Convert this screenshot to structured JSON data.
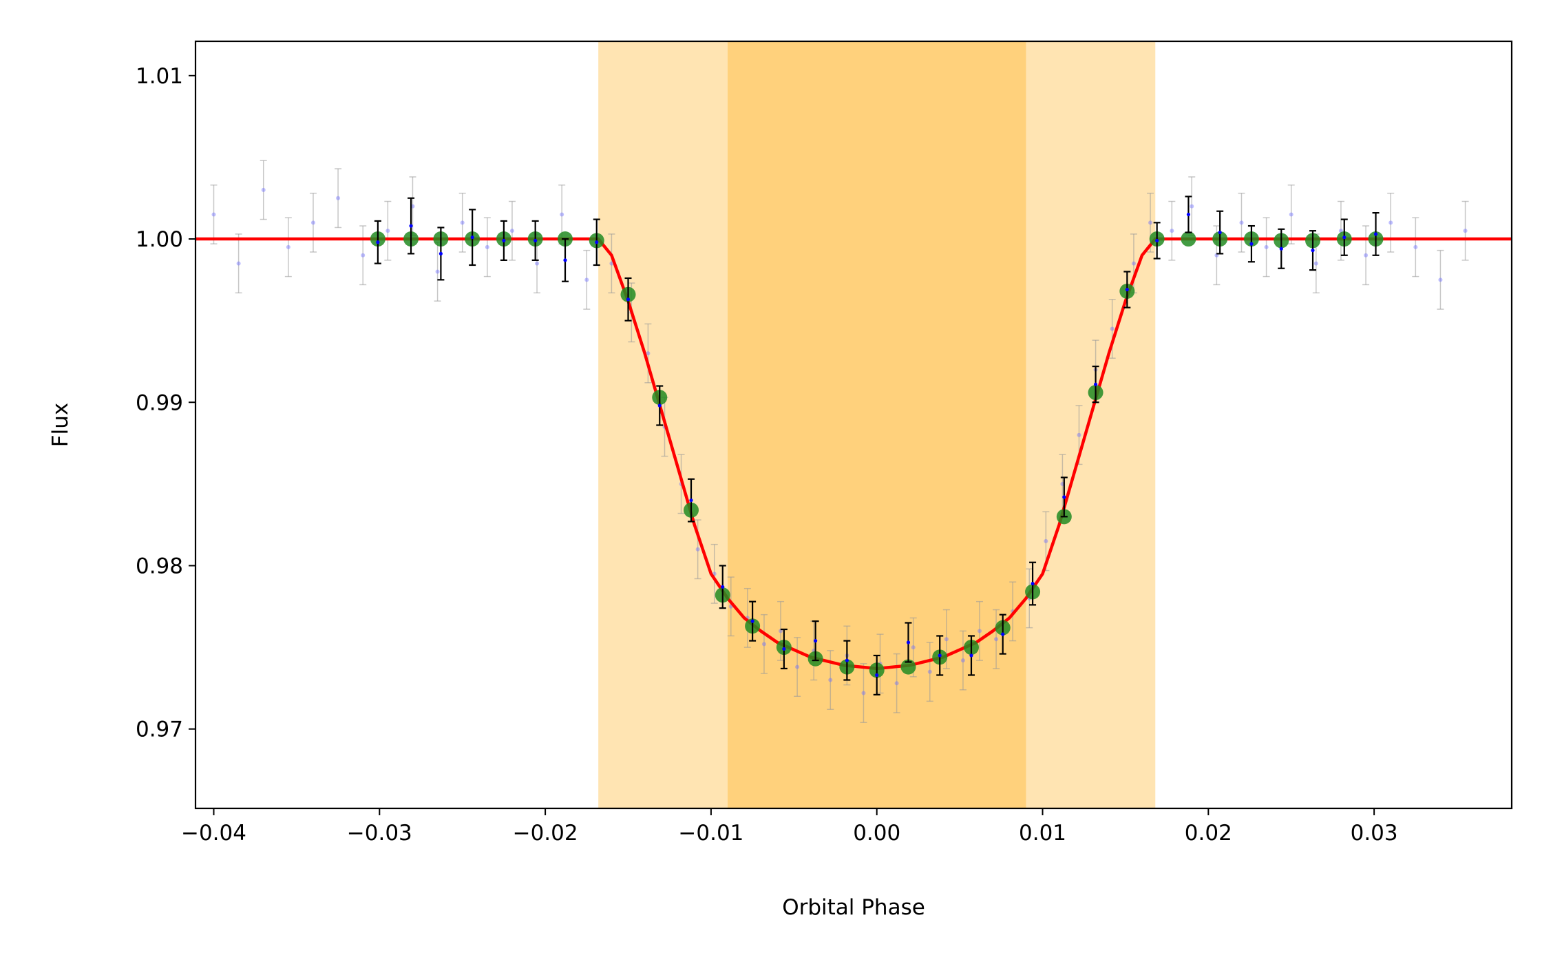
{
  "chart_data": {
    "type": "scatter",
    "xlabel": "Orbital Phase",
    "ylabel": "Flux",
    "xlim": [
      -0.0411,
      0.0383
    ],
    "ylim": [
      0.96514,
      1.0121
    ],
    "xticks": [
      {
        "value": -0.04,
        "label": "−0.04"
      },
      {
        "value": -0.03,
        "label": "−0.03"
      },
      {
        "value": -0.02,
        "label": "−0.02"
      },
      {
        "value": -0.01,
        "label": "−0.01"
      },
      {
        "value": 0,
        "label": "0.00"
      },
      0.01,
      0.02,
      0.03
    ],
    "yticks": [
      0.97,
      0.98,
      0.99,
      {
        "value": 1.0,
        "label": "1.00"
      },
      1.01
    ],
    "spans": [
      {
        "xmin": -0.0168,
        "xmax": 0.0168,
        "color": "#ffa500",
        "alpha": 0.3
      },
      {
        "xmin": -0.009,
        "xmax": 0.009,
        "color": "#ffa500",
        "alpha": 0.3
      }
    ],
    "series": [
      {
        "kind": "errorbar",
        "color": "#7070ff",
        "ecolor": "#999999",
        "alpha": 0.45,
        "error": 0.0018,
        "x": [
          -0.04,
          -0.0385,
          -0.037,
          -0.0355,
          -0.034,
          -0.0325,
          -0.031,
          -0.0295,
          -0.028,
          -0.0265,
          -0.025,
          -0.0235,
          -0.022,
          -0.0205,
          -0.019,
          -0.0175,
          -0.016,
          -0.0148,
          -0.0138,
          -0.0128,
          -0.0118,
          -0.0108,
          -0.0098,
          -0.0088,
          -0.0078,
          -0.0068,
          -0.0058,
          -0.0048,
          -0.0038,
          -0.0028,
          -0.0018,
          -0.0008,
          0.0002,
          0.0012,
          0.0022,
          0.0032,
          0.0042,
          0.0052,
          0.0062,
          0.0072,
          0.0082,
          0.0092,
          0.0102,
          0.0112,
          0.0122,
          0.0132,
          0.0142,
          0.0155,
          0.0165,
          0.0178,
          0.019,
          0.0205,
          0.022,
          0.0235,
          0.025,
          0.0265,
          0.028,
          0.0295,
          0.031,
          0.0325,
          0.034,
          0.0355
        ],
        "values": [
          1.0015,
          0.9985,
          1.003,
          0.9995,
          1.001,
          1.0025,
          0.999,
          1.0005,
          1.002,
          0.998,
          1.001,
          0.9995,
          1.0005,
          0.9985,
          1.0015,
          0.9975,
          0.9985,
          0.9955,
          0.993,
          0.9885,
          0.985,
          0.981,
          0.9795,
          0.9775,
          0.9768,
          0.9752,
          0.976,
          0.9738,
          0.9748,
          0.973,
          0.9745,
          0.9722,
          0.974,
          0.9728,
          0.975,
          0.9735,
          0.9755,
          0.9742,
          0.976,
          0.9755,
          0.9772,
          0.978,
          0.9815,
          0.985,
          0.988,
          0.992,
          0.9945,
          0.9985,
          1.001,
          1.0005,
          1.002,
          0.999,
          1.001,
          0.9995,
          1.0015,
          0.9985,
          1.0005,
          0.999,
          1.001,
          0.9995,
          0.9975,
          1.0005
        ]
      },
      {
        "kind": "line",
        "color": "#ff0000",
        "x": [
          -0.0411,
          -0.0168,
          -0.016,
          -0.015,
          -0.014,
          -0.013,
          -0.012,
          -0.011,
          -0.01,
          -0.009,
          -0.008,
          -0.007,
          -0.006,
          -0.004,
          -0.002,
          0,
          0.002,
          0.004,
          0.006,
          0.007,
          0.008,
          0.009,
          0.01,
          0.011,
          0.012,
          0.013,
          0.014,
          0.015,
          0.016,
          0.0168,
          0.0383
        ],
        "values": [
          1.0,
          1.0,
          0.999,
          0.9962,
          0.993,
          0.9895,
          0.986,
          0.9825,
          0.9795,
          0.978,
          0.9768,
          0.976,
          0.9753,
          0.9744,
          0.9739,
          0.9737,
          0.9739,
          0.9744,
          0.9753,
          0.976,
          0.9768,
          0.978,
          0.9795,
          0.9825,
          0.986,
          0.9895,
          0.993,
          0.9962,
          0.999,
          1.0,
          1.0
        ]
      },
      {
        "kind": "scatter",
        "color": "#228b22",
        "alpha": 0.85,
        "x": [
          -0.0301,
          -0.0281,
          -0.0263,
          -0.0244,
          -0.0225,
          -0.0206,
          -0.0188,
          -0.0169,
          -0.015,
          -0.0131,
          -0.0112,
          -0.0093,
          -0.0075,
          -0.0056,
          -0.0037,
          -0.0018,
          0,
          0.0019,
          0.0038,
          0.0057,
          0.0076,
          0.0094,
          0.0113,
          0.0132,
          0.0151,
          0.0169,
          0.0188,
          0.0207,
          0.0226,
          0.0244,
          0.0263,
          0.0282,
          0.0301
        ],
        "values": [
          1.0,
          1.0,
          1.0,
          1.0,
          1.0,
          1.0,
          1.0,
          0.9999,
          0.9966,
          0.9903,
          0.9834,
          0.9782,
          0.9763,
          0.975,
          0.9743,
          0.9738,
          0.9736,
          0.9738,
          0.9744,
          0.975,
          0.9762,
          0.9784,
          0.983,
          0.9906,
          0.9968,
          1.0,
          1.0,
          1.0,
          1.0,
          0.9999,
          0.9999,
          1.0,
          1.0
        ]
      },
      {
        "kind": "errorbar",
        "color": "#0000ff",
        "ecolor": "#000000",
        "alpha": 1,
        "x": [
          -0.0301,
          -0.0281,
          -0.0263,
          -0.0244,
          -0.0225,
          -0.0206,
          -0.0188,
          -0.0169,
          -0.015,
          -0.0131,
          -0.0112,
          -0.0093,
          -0.0075,
          -0.0056,
          -0.0037,
          -0.0018,
          0,
          0.0019,
          0.0038,
          0.0057,
          0.0076,
          0.0094,
          0.0113,
          0.0132,
          0.0151,
          0.0169,
          0.0188,
          0.0207,
          0.0226,
          0.0244,
          0.0263,
          0.0282,
          0.0301
        ],
        "values": [
          0.9998,
          1.0008,
          0.9991,
          1.0001,
          0.9999,
          0.9999,
          0.9987,
          0.9998,
          0.9963,
          0.9898,
          0.984,
          0.9787,
          0.9766,
          0.9749,
          0.9754,
          0.9742,
          0.9733,
          0.9753,
          0.9745,
          0.9745,
          0.9758,
          0.9789,
          0.9842,
          0.9911,
          0.9969,
          0.9999,
          1.0015,
          1.0004,
          0.9997,
          0.9994,
          0.9993,
          1.0001,
          1.0003
        ],
        "errors": [
          0.0013,
          0.0017,
          0.0016,
          0.0017,
          0.0012,
          0.0012,
          0.0013,
          0.0014,
          0.0013,
          0.0012,
          0.0013,
          0.0013,
          0.0012,
          0.0012,
          0.0012,
          0.0012,
          0.0012,
          0.0012,
          0.0012,
          0.0012,
          0.0012,
          0.0013,
          0.0012,
          0.0011,
          0.0011,
          0.0011,
          0.0011,
          0.0013,
          0.0011,
          0.0012,
          0.0012,
          0.0011,
          0.0013
        ]
      }
    ]
  }
}
